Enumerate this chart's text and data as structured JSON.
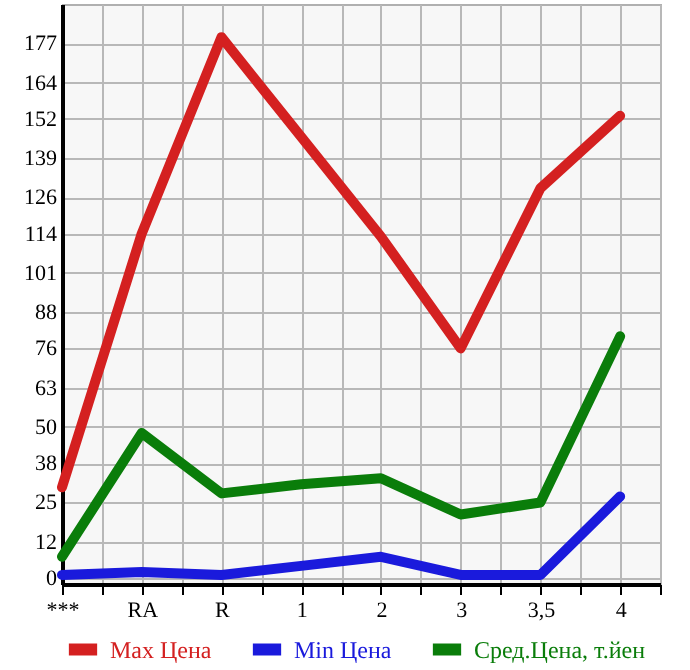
{
  "chart_data": {
    "type": "line",
    "categories": [
      "***",
      "RA",
      "R",
      "1",
      "2",
      "3",
      "3,5",
      "4"
    ],
    "series": [
      {
        "name": "Max Цена",
        "color": "#d42020",
        "values": [
          30,
          114,
          179,
          146,
          113,
          76,
          129,
          153
        ]
      },
      {
        "name": "Min Цена",
        "color": "#1a1adc",
        "values": [
          1,
          2,
          1,
          4,
          7,
          1,
          1,
          27
        ]
      },
      {
        "name": "Сред.Цена, т.йен",
        "color": "#0a7d0a",
        "values": [
          7,
          48,
          28,
          31,
          33,
          21,
          25,
          80
        ]
      }
    ],
    "ylim": [
      -2,
      190
    ],
    "yticks": [
      0,
      12,
      25,
      38,
      50,
      63,
      76,
      88,
      101,
      114,
      126,
      139,
      152,
      164,
      177
    ],
    "grid": true,
    "legend": "bottom",
    "marker": "none",
    "line_style": "solid"
  }
}
